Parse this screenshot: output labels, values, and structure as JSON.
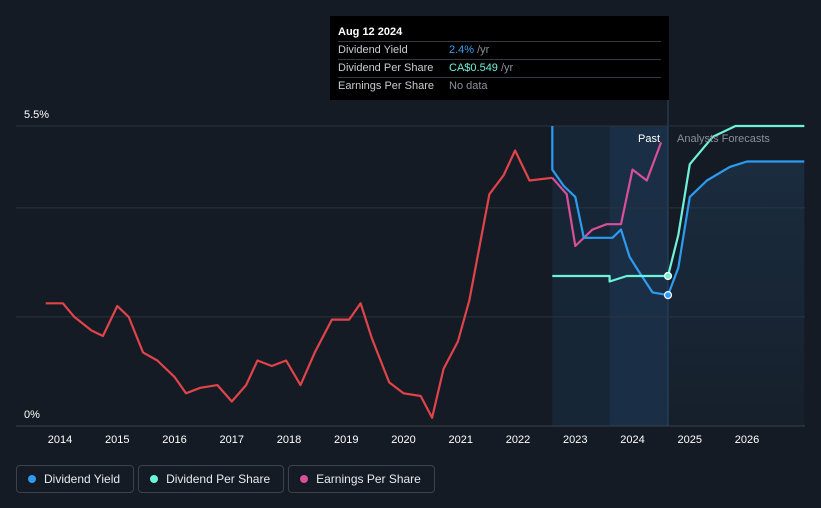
{
  "tooltip": {
    "date": "Aug 12 2024",
    "rows": [
      {
        "label": "Dividend Yield",
        "value": "2.4%",
        "unit": "/yr",
        "color": "#3aa1f0"
      },
      {
        "label": "Dividend Per Share",
        "value": "CA$0.549",
        "unit": "/yr",
        "color": "#6ff2dc"
      },
      {
        "label": "Earnings Per Share",
        "value": "No data",
        "unit": "",
        "color": "#8a9099"
      }
    ]
  },
  "legend": [
    {
      "label": "Dividend Yield",
      "color": "#2d9bf0"
    },
    {
      "label": "Dividend Per Share",
      "color": "#6ff2dc"
    },
    {
      "label": "Earnings Per Share",
      "color": "#d94f9a"
    }
  ],
  "chart_data": {
    "type": "line",
    "y_labels": {
      "top": "5.5%",
      "bottom": "0%"
    },
    "ylim": [
      0,
      5.5
    ],
    "xlim": [
      2013.6,
      2027.0
    ],
    "x_ticks": [
      "2014",
      "2015",
      "2016",
      "2017",
      "2018",
      "2019",
      "2020",
      "2021",
      "2022",
      "2023",
      "2024",
      "2025",
      "2026"
    ],
    "region_labels": {
      "past": "Past",
      "forecast": "Analysts Forecasts"
    },
    "past_end": 2024.62,
    "colors": {
      "dividend_yield": "#2d9bf0",
      "dividend_per_share": "#6ff2dc",
      "earnings_per_share": "#e0444a",
      "earnings_per_share_recent": "#d94f9a"
    },
    "series": [
      {
        "name": "Earnings Per Share",
        "points": [
          [
            2013.75,
            2.25
          ],
          [
            2014.05,
            2.25
          ],
          [
            2014.25,
            2.0
          ],
          [
            2014.55,
            1.75
          ],
          [
            2014.75,
            1.65
          ],
          [
            2015.0,
            2.2
          ],
          [
            2015.2,
            2.0
          ],
          [
            2015.45,
            1.35
          ],
          [
            2015.7,
            1.2
          ],
          [
            2016.0,
            0.9
          ],
          [
            2016.2,
            0.6
          ],
          [
            2016.45,
            0.7
          ],
          [
            2016.75,
            0.75
          ],
          [
            2017.0,
            0.45
          ],
          [
            2017.25,
            0.75
          ],
          [
            2017.45,
            1.2
          ],
          [
            2017.7,
            1.1
          ],
          [
            2017.95,
            1.2
          ],
          [
            2018.2,
            0.75
          ],
          [
            2018.45,
            1.35
          ],
          [
            2018.75,
            1.95
          ],
          [
            2019.05,
            1.95
          ],
          [
            2019.25,
            2.25
          ],
          [
            2019.45,
            1.6
          ],
          [
            2019.75,
            0.8
          ],
          [
            2020.0,
            0.6
          ],
          [
            2020.3,
            0.55
          ],
          [
            2020.5,
            0.15
          ],
          [
            2020.7,
            1.05
          ],
          [
            2020.95,
            1.55
          ],
          [
            2021.15,
            2.3
          ],
          [
            2021.5,
            4.25
          ],
          [
            2021.75,
            4.6
          ],
          [
            2021.95,
            5.05
          ],
          [
            2022.2,
            4.5
          ],
          [
            2022.6,
            4.55
          ]
        ]
      },
      {
        "name": "Earnings Per Share",
        "points": [
          [
            2022.6,
            4.55
          ],
          [
            2022.85,
            4.25
          ],
          [
            2023.0,
            3.3
          ],
          [
            2023.3,
            3.6
          ],
          [
            2023.55,
            3.7
          ],
          [
            2023.8,
            3.7
          ],
          [
            2024.0,
            4.7
          ],
          [
            2024.25,
            4.5
          ],
          [
            2024.5,
            5.2
          ]
        ]
      },
      {
        "name": "Dividend Yield",
        "points": [
          [
            2022.6,
            5.5
          ],
          [
            2022.6,
            4.7
          ],
          [
            2022.8,
            4.4
          ],
          [
            2023.0,
            4.2
          ],
          [
            2023.15,
            3.45
          ],
          [
            2023.4,
            3.45
          ],
          [
            2023.65,
            3.45
          ],
          [
            2023.8,
            3.6
          ],
          [
            2023.95,
            3.1
          ],
          [
            2024.1,
            2.85
          ],
          [
            2024.35,
            2.45
          ],
          [
            2024.62,
            2.4
          ],
          [
            2024.8,
            2.9
          ],
          [
            2025.0,
            4.2
          ],
          [
            2025.3,
            4.5
          ],
          [
            2025.7,
            4.75
          ],
          [
            2026.0,
            4.85
          ],
          [
            2026.5,
            4.85
          ],
          [
            2027.0,
            4.85
          ]
        ]
      },
      {
        "name": "Dividend Per Share",
        "points": [
          [
            2022.6,
            2.75
          ],
          [
            2023.0,
            2.75
          ],
          [
            2023.3,
            2.75
          ],
          [
            2023.6,
            2.75
          ],
          [
            2023.6,
            2.65
          ],
          [
            2023.9,
            2.75
          ],
          [
            2024.0,
            2.75
          ],
          [
            2024.3,
            2.75
          ],
          [
            2024.62,
            2.75
          ],
          [
            2024.8,
            3.5
          ],
          [
            2025.0,
            4.8
          ],
          [
            2025.4,
            5.3
          ],
          [
            2025.8,
            5.5
          ],
          [
            2026.3,
            5.5
          ],
          [
            2027.0,
            5.5
          ]
        ]
      }
    ],
    "markers": [
      {
        "series": "Dividend Yield",
        "x": 2024.62,
        "y": 2.4
      },
      {
        "series": "Dividend Per Share",
        "x": 2024.62,
        "y": 2.75
      }
    ]
  }
}
